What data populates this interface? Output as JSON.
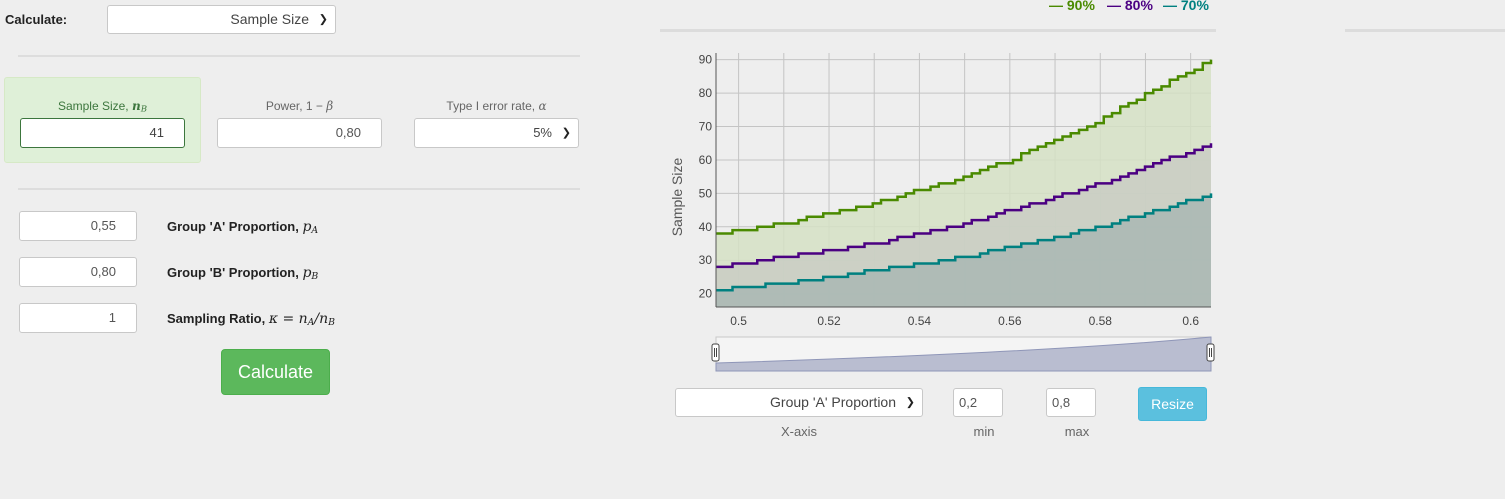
{
  "calculate": {
    "label": "Calculate:",
    "selected": "Sample Size"
  },
  "result": {
    "sample_size": {
      "label": "Sample Size, ",
      "symbol": "n",
      "sub": "B",
      "value": "41"
    },
    "power": {
      "label": "Power, 1 − ",
      "symbol": "β",
      "value": "0,80"
    },
    "alpha": {
      "label": "Type I error rate, ",
      "symbol": "α",
      "selected": "5%"
    }
  },
  "params": [
    {
      "value": "0,55",
      "label": "Group 'A' Proportion, ",
      "symbol": "p",
      "sub": "A"
    },
    {
      "value": "0,80",
      "label": "Group 'B' Proportion, ",
      "symbol": "p",
      "sub": "B"
    },
    {
      "value": "1",
      "label": "Sampling Ratio, ",
      "formula": "κ = n",
      "sub1": "A",
      "mid": "/n",
      "sub2": "B"
    }
  ],
  "calculate_button": "Calculate",
  "legend": [
    {
      "label": "— 90%",
      "color": "#4a8a00"
    },
    {
      "label": "— 80%",
      "color": "#4b0082"
    },
    {
      "label": "— 70%",
      "color": "#008080"
    }
  ],
  "chart_data": {
    "type": "area",
    "ylabel": "Sample Size",
    "xlabel": "",
    "xlim": [
      0.495,
      0.6045
    ],
    "ylim": [
      16,
      92
    ],
    "x_ticks": [
      "0.5",
      "0.52",
      "0.54",
      "0.56",
      "0.58",
      "0.6"
    ],
    "y_ticks": [
      "20",
      "30",
      "40",
      "50",
      "60",
      "70",
      "80",
      "90"
    ],
    "series": [
      {
        "name": "90%",
        "color": "#4a8a00",
        "fill": "#d5e0c4",
        "values": [
          [
            0.495,
            38
          ],
          [
            0.5,
            39
          ],
          [
            0.51,
            41
          ],
          [
            0.52,
            44
          ],
          [
            0.53,
            47
          ],
          [
            0.54,
            51
          ],
          [
            0.55,
            55
          ],
          [
            0.56,
            60
          ],
          [
            0.57,
            66
          ],
          [
            0.58,
            72
          ],
          [
            0.59,
            80
          ],
          [
            0.6045,
            90
          ]
        ]
      },
      {
        "name": "80%",
        "color": "#4b0082",
        "fill": "#c9ccc4",
        "values": [
          [
            0.495,
            28
          ],
          [
            0.5,
            29
          ],
          [
            0.51,
            31
          ],
          [
            0.52,
            33
          ],
          [
            0.53,
            35
          ],
          [
            0.54,
            38
          ],
          [
            0.55,
            41
          ],
          [
            0.56,
            45
          ],
          [
            0.57,
            49
          ],
          [
            0.58,
            53
          ],
          [
            0.59,
            58
          ],
          [
            0.6045,
            65
          ]
        ]
      },
      {
        "name": "70%",
        "color": "#008080",
        "fill": "#a9b7b3",
        "values": [
          [
            0.495,
            21
          ],
          [
            0.5,
            22
          ],
          [
            0.51,
            23
          ],
          [
            0.52,
            25
          ],
          [
            0.53,
            27
          ],
          [
            0.54,
            29
          ],
          [
            0.55,
            31
          ],
          [
            0.56,
            34
          ],
          [
            0.57,
            37
          ],
          [
            0.58,
            40
          ],
          [
            0.59,
            44
          ],
          [
            0.6045,
            50
          ]
        ]
      }
    ]
  },
  "controls": {
    "xaxis_selected": "Group 'A' Proportion",
    "xaxis_label": "X-axis",
    "min_value": "0,2",
    "min_label": "min",
    "max_value": "0,8",
    "max_label": "max",
    "resize_button": "Resize"
  }
}
